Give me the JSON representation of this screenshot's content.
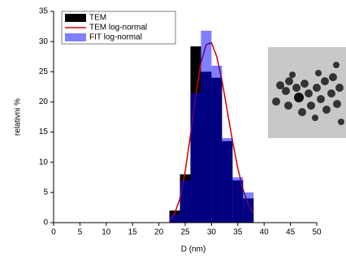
{
  "chart_data": {
    "type": "histogram",
    "xlabel": "D (nm)",
    "ylabel": "relativni %",
    "bins": [
      22,
      24,
      26,
      28,
      30,
      32,
      34,
      36,
      38
    ],
    "series": [
      {
        "name": "TEM",
        "type": "histogram",
        "color": "#000000",
        "values": [
          2,
          8,
          29.2,
          25,
          24,
          13.5,
          7,
          4
        ]
      },
      {
        "name": "TEM log-normal",
        "type": "line",
        "color": "#d40000",
        "x": [
          22,
          23,
          24,
          25,
          26,
          27,
          28,
          29,
          30,
          31,
          32,
          33,
          34,
          35,
          36,
          37,
          38
        ],
        "values": [
          0.3,
          1.5,
          4,
          8.5,
          14.5,
          21,
          26.5,
          29.5,
          29.8,
          27.5,
          23.5,
          18.5,
          13.5,
          9,
          5.5,
          3,
          1.5
        ]
      },
      {
        "name": "FIT log-normal",
        "type": "histogram",
        "color": "#0000ff",
        "opacity": 0.5,
        "values": [
          1.3,
          7,
          21.5,
          31.8,
          26,
          14,
          7.5,
          5
        ]
      }
    ],
    "xlim": [
      0,
      50
    ],
    "xticks": [
      0,
      5,
      10,
      15,
      20,
      25,
      30,
      35,
      40,
      45,
      50
    ],
    "ylim": [
      0,
      35
    ],
    "yticks": [
      0,
      5,
      10,
      15,
      20,
      25,
      30,
      35
    ],
    "legend": "upper-left"
  }
}
